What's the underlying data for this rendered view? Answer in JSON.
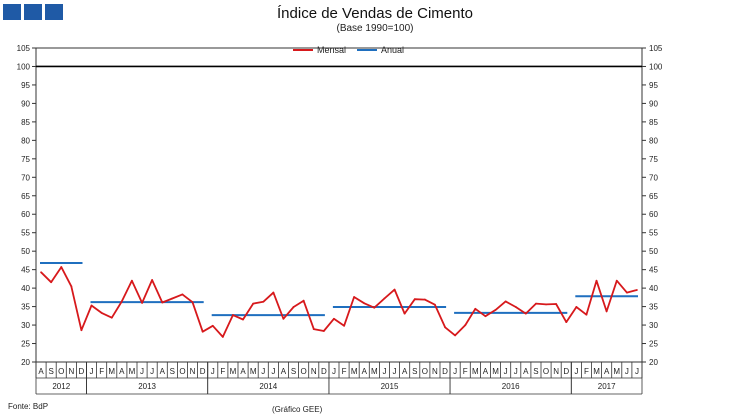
{
  "title": "Índice de Vendas de Cimento",
  "subtitle": "(Base 1990=100)",
  "source": "Fonte: BdP",
  "credit": "(Gráfico GEE)",
  "colors": {
    "mensal": "#d7191c",
    "anual": "#1f6fbf",
    "reference": "#000000",
    "logo": "#1f5aa6"
  },
  "chart_data": {
    "type": "line",
    "title": "Índice de Vendas de Cimento",
    "subtitle": "(Base 1990=100)",
    "ylim": [
      20,
      105
    ],
    "yticks": [
      20,
      25,
      30,
      35,
      40,
      45,
      50,
      55,
      60,
      65,
      70,
      75,
      80,
      85,
      90,
      95,
      100,
      105
    ],
    "y_axis_both_sides": true,
    "grid": false,
    "legend_position": "top-center",
    "reference_line": {
      "value": 100,
      "color": "#000000"
    },
    "month_labels": [
      "A",
      "S",
      "O",
      "N",
      "D",
      "J",
      "F",
      "M",
      "A",
      "M",
      "J",
      "J",
      "A",
      "S",
      "O",
      "N",
      "D",
      "J",
      "F",
      "M",
      "A",
      "M",
      "J",
      "J",
      "A",
      "S",
      "O",
      "N",
      "D",
      "J",
      "F",
      "M",
      "A",
      "M",
      "J",
      "J",
      "A",
      "S",
      "O",
      "N",
      "D",
      "J",
      "F",
      "M",
      "A",
      "M",
      "J",
      "J",
      "A",
      "S",
      "O",
      "N",
      "D",
      "J",
      "F",
      "M",
      "A",
      "M",
      "J",
      "J"
    ],
    "years": [
      {
        "label": "2012",
        "start": 0,
        "count": 5
      },
      {
        "label": "2013",
        "start": 5,
        "count": 12
      },
      {
        "label": "2014",
        "start": 17,
        "count": 12
      },
      {
        "label": "2015",
        "start": 29,
        "count": 12
      },
      {
        "label": "2016",
        "start": 41,
        "count": 12
      },
      {
        "label": "2017",
        "start": 53,
        "count": 7
      }
    ],
    "series": [
      {
        "name": "Mensal",
        "color": "#d7191c",
        "values": [
          44.3,
          41.6,
          45.7,
          40.5,
          28.6,
          35.3,
          33.3,
          32.0,
          36.4,
          42.0,
          36.0,
          42.2,
          36.1,
          37.2,
          38.3,
          36.2,
          28.2,
          29.8,
          26.8,
          32.7,
          31.5,
          35.8,
          36.3,
          38.8,
          31.7,
          34.9,
          36.6,
          28.9,
          28.4,
          31.7,
          29.8,
          37.6,
          35.9,
          34.7,
          37.2,
          39.6,
          33.1,
          37.0,
          36.9,
          35.5,
          29.4,
          27.2,
          30.0,
          34.4,
          32.4,
          34.1,
          36.4,
          34.9,
          33.1,
          35.8,
          35.6,
          35.7,
          30.8,
          34.9,
          32.8,
          42.0,
          33.7,
          42.0,
          38.8,
          39.5
        ]
      },
      {
        "name": "Anual",
        "color": "#1f6fbf",
        "segments": [
          {
            "year": "2012",
            "value": 46.8
          },
          {
            "year": "2013",
            "value": 36.2
          },
          {
            "year": "2014",
            "value": 32.7
          },
          {
            "year": "2015",
            "value": 34.9
          },
          {
            "year": "2016",
            "value": 33.3
          },
          {
            "year": "2017",
            "value": 37.8
          }
        ]
      }
    ]
  }
}
